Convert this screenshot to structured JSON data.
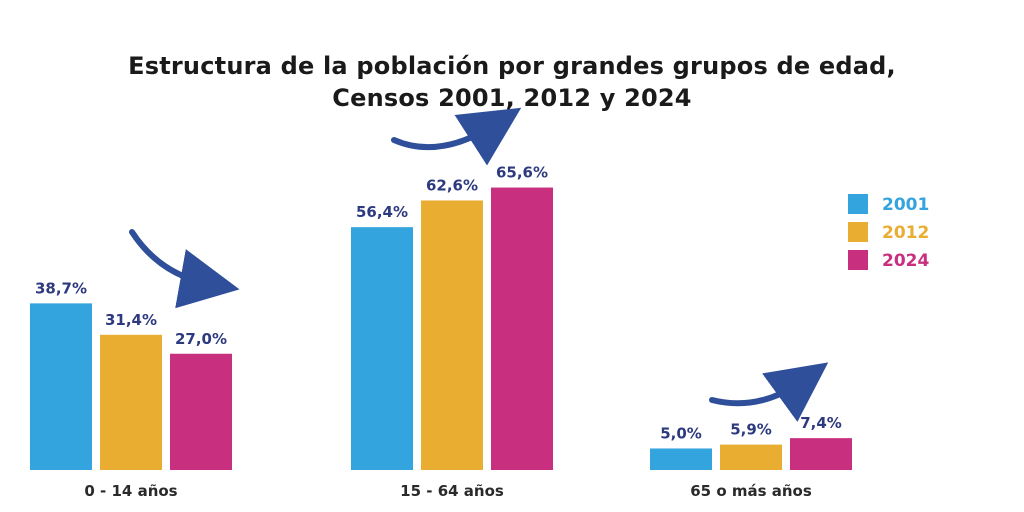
{
  "chart_data": {
    "type": "bar",
    "title": "Estructura de la población por grandes grupos de edad,",
    "subtitle": "Censos  2001, 2012 y 2024",
    "categories": [
      "0 - 14 años",
      "15 - 64 años",
      "65 o más años"
    ],
    "series": [
      {
        "name": "2001",
        "values": [
          38.7,
          56.4,
          5.0
        ],
        "labels": [
          "38,7%",
          "56,4%",
          "5,0%"
        ],
        "color": "#34a4de"
      },
      {
        "name": "2012",
        "values": [
          31.4,
          62.6,
          5.9
        ],
        "labels": [
          "31,4%",
          "62,6%",
          "5,9%"
        ],
        "color": "#e9ad32"
      },
      {
        "name": "2024",
        "values": [
          27.0,
          65.6,
          7.4
        ],
        "labels": [
          "27,0%",
          "65,6%",
          "7,4%"
        ],
        "color": "#c8307f"
      }
    ],
    "xlabel": "",
    "ylabel": "",
    "ylim": [
      0,
      72
    ],
    "grid": false,
    "legend_position": "right",
    "label_color": "#2e3a80",
    "arrow_color": "#2f4f9a",
    "trend_arrows": [
      "down",
      "up",
      "up"
    ]
  }
}
